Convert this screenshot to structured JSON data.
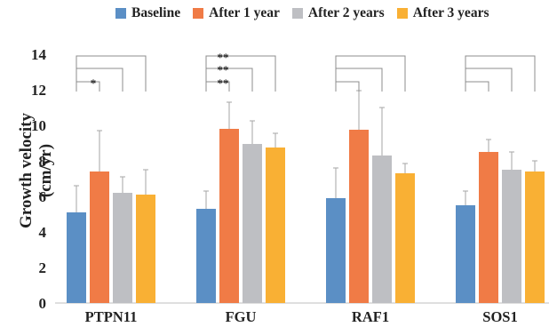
{
  "chart_data": {
    "type": "bar",
    "title": "",
    "xlabel": "",
    "ylabel": "Growth velocity (cm/yr)",
    "ylim": [
      0,
      14
    ],
    "yticks": [
      "0",
      "2",
      "4",
      "6",
      "8",
      "10",
      "12",
      "14"
    ],
    "categories": [
      "PTPN11",
      "FGU",
      "RAF1",
      "SOS1"
    ],
    "series": [
      {
        "name": "Baseline",
        "color": "#5B8FC5",
        "values": [
          5.1,
          5.3,
          5.9,
          5.5
        ],
        "errors": [
          1.5,
          1.0,
          1.7,
          0.8
        ]
      },
      {
        "name": "After 1 year",
        "color": "#F07B46",
        "values": [
          7.4,
          9.8,
          9.75,
          8.5
        ],
        "errors": [
          2.3,
          1.5,
          2.2,
          0.7
        ]
      },
      {
        "name": "After 2 years",
        "color": "#BEBFC3",
        "values": [
          6.2,
          8.95,
          8.3,
          7.5
        ],
        "errors": [
          0.9,
          1.3,
          2.7,
          1.0
        ]
      },
      {
        "name": "After 3 years",
        "color": "#F9B034",
        "values": [
          6.1,
          8.75,
          7.3,
          7.4
        ],
        "errors": [
          1.4,
          0.8,
          0.55,
          0.6
        ]
      }
    ],
    "significance": [
      {
        "category": "PTPN11",
        "pairs": [
          {
            "compare": "After 1 year",
            "mark": "*"
          },
          {
            "compare": "After 2 years",
            "mark": ""
          },
          {
            "compare": "After 3 years",
            "mark": ""
          }
        ]
      },
      {
        "category": "FGU",
        "pairs": [
          {
            "compare": "After 1 year",
            "mark": "**"
          },
          {
            "compare": "After 2 years",
            "mark": "**"
          },
          {
            "compare": "After 3 years",
            "mark": "**"
          }
        ]
      },
      {
        "category": "RAF1",
        "pairs": [
          {
            "compare": "After 1 year",
            "mark": ""
          },
          {
            "compare": "After 2 years",
            "mark": ""
          },
          {
            "compare": "After 3 years",
            "mark": ""
          }
        ]
      },
      {
        "category": "SOS1",
        "pairs": [
          {
            "compare": "After 1 year",
            "mark": ""
          },
          {
            "compare": "After 2 years",
            "mark": ""
          },
          {
            "compare": "After 3 years",
            "mark": ""
          }
        ]
      }
    ],
    "legend_position": "top",
    "grid": false
  }
}
